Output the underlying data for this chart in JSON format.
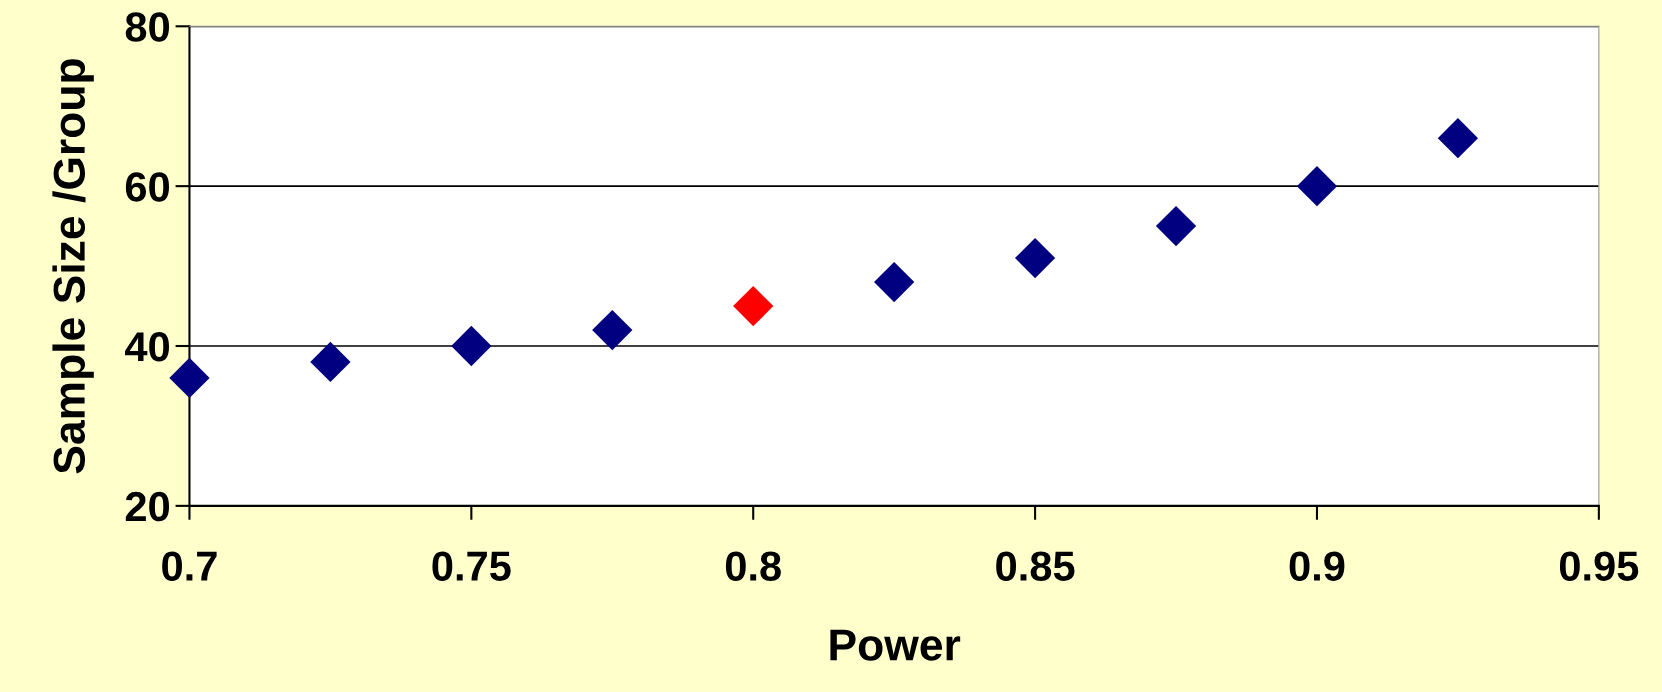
{
  "chart_data": {
    "type": "scatter",
    "xlabel": "Power",
    "ylabel": "Sample Size /Group",
    "x": [
      0.7,
      0.725,
      0.75,
      0.775,
      0.8,
      0.825,
      0.85,
      0.875,
      0.9,
      0.925
    ],
    "values": [
      36,
      38,
      40,
      42,
      45,
      48,
      51,
      55,
      60,
      66
    ],
    "colors": [
      "#000080",
      "#000080",
      "#000080",
      "#000080",
      "#ff0000",
      "#000080",
      "#000080",
      "#000080",
      "#000080",
      "#000080"
    ],
    "marker": "diamond",
    "xlim": [
      0.7,
      0.95
    ],
    "xticks": [
      0.7,
      0.75,
      0.8,
      0.85,
      0.9,
      0.95
    ],
    "ylim": [
      20,
      80
    ],
    "yticks": [
      20,
      40,
      60,
      80
    ],
    "grid": "y"
  }
}
